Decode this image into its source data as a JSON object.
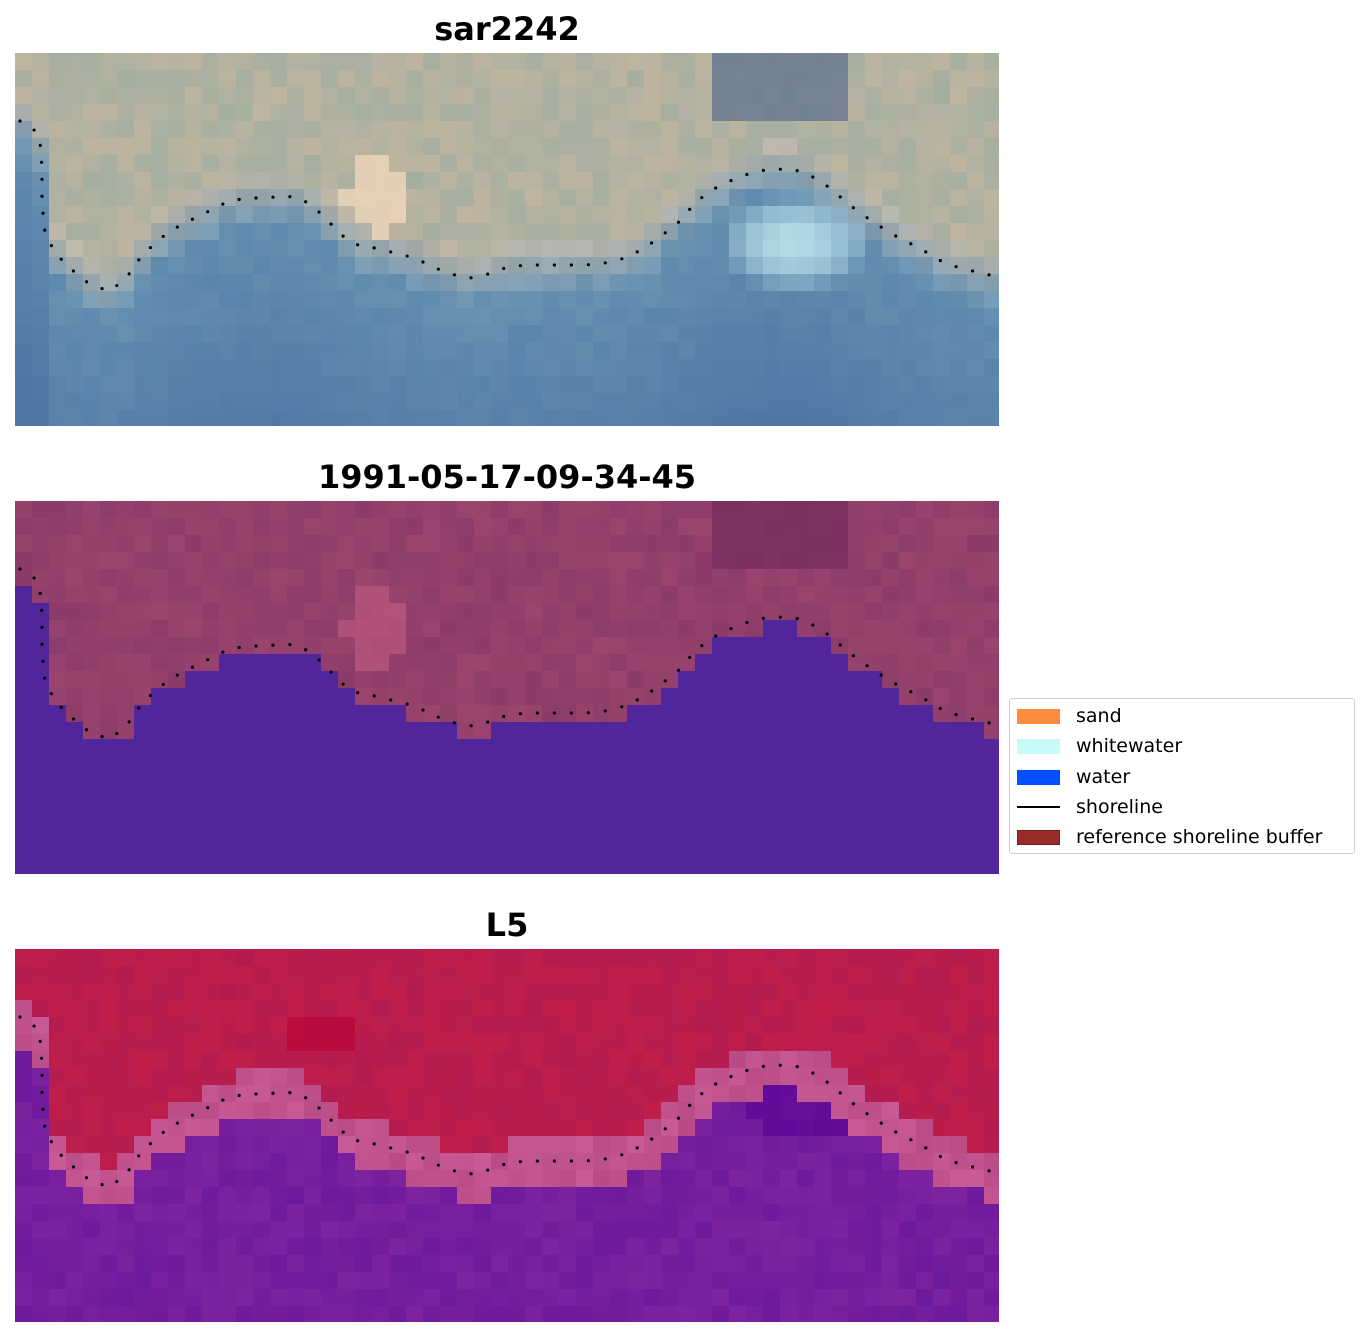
{
  "panels": [
    {
      "title": "sar2242",
      "style": "rgb"
    },
    {
      "title": "1991-05-17-09-34-45",
      "style": "classified"
    },
    {
      "title": "L5",
      "style": "index"
    }
  ],
  "legend": {
    "items": [
      {
        "label": "sand",
        "color": "#ff8c3c",
        "kind": "patch"
      },
      {
        "label": "whitewater",
        "color": "#c8fafa",
        "kind": "patch"
      },
      {
        "label": "water",
        "color": "#0050ff",
        "kind": "patch"
      },
      {
        "label": "shoreline",
        "color": "#000000",
        "kind": "line"
      },
      {
        "label": "reference shoreline buffer",
        "color": "#9a2b2b",
        "kind": "patch"
      }
    ]
  },
  "colors": {
    "water_class": "#51259b",
    "land_tint": "#9a446e",
    "index_land": "#c01f4a",
    "index_water": "#6c1a9c"
  }
}
